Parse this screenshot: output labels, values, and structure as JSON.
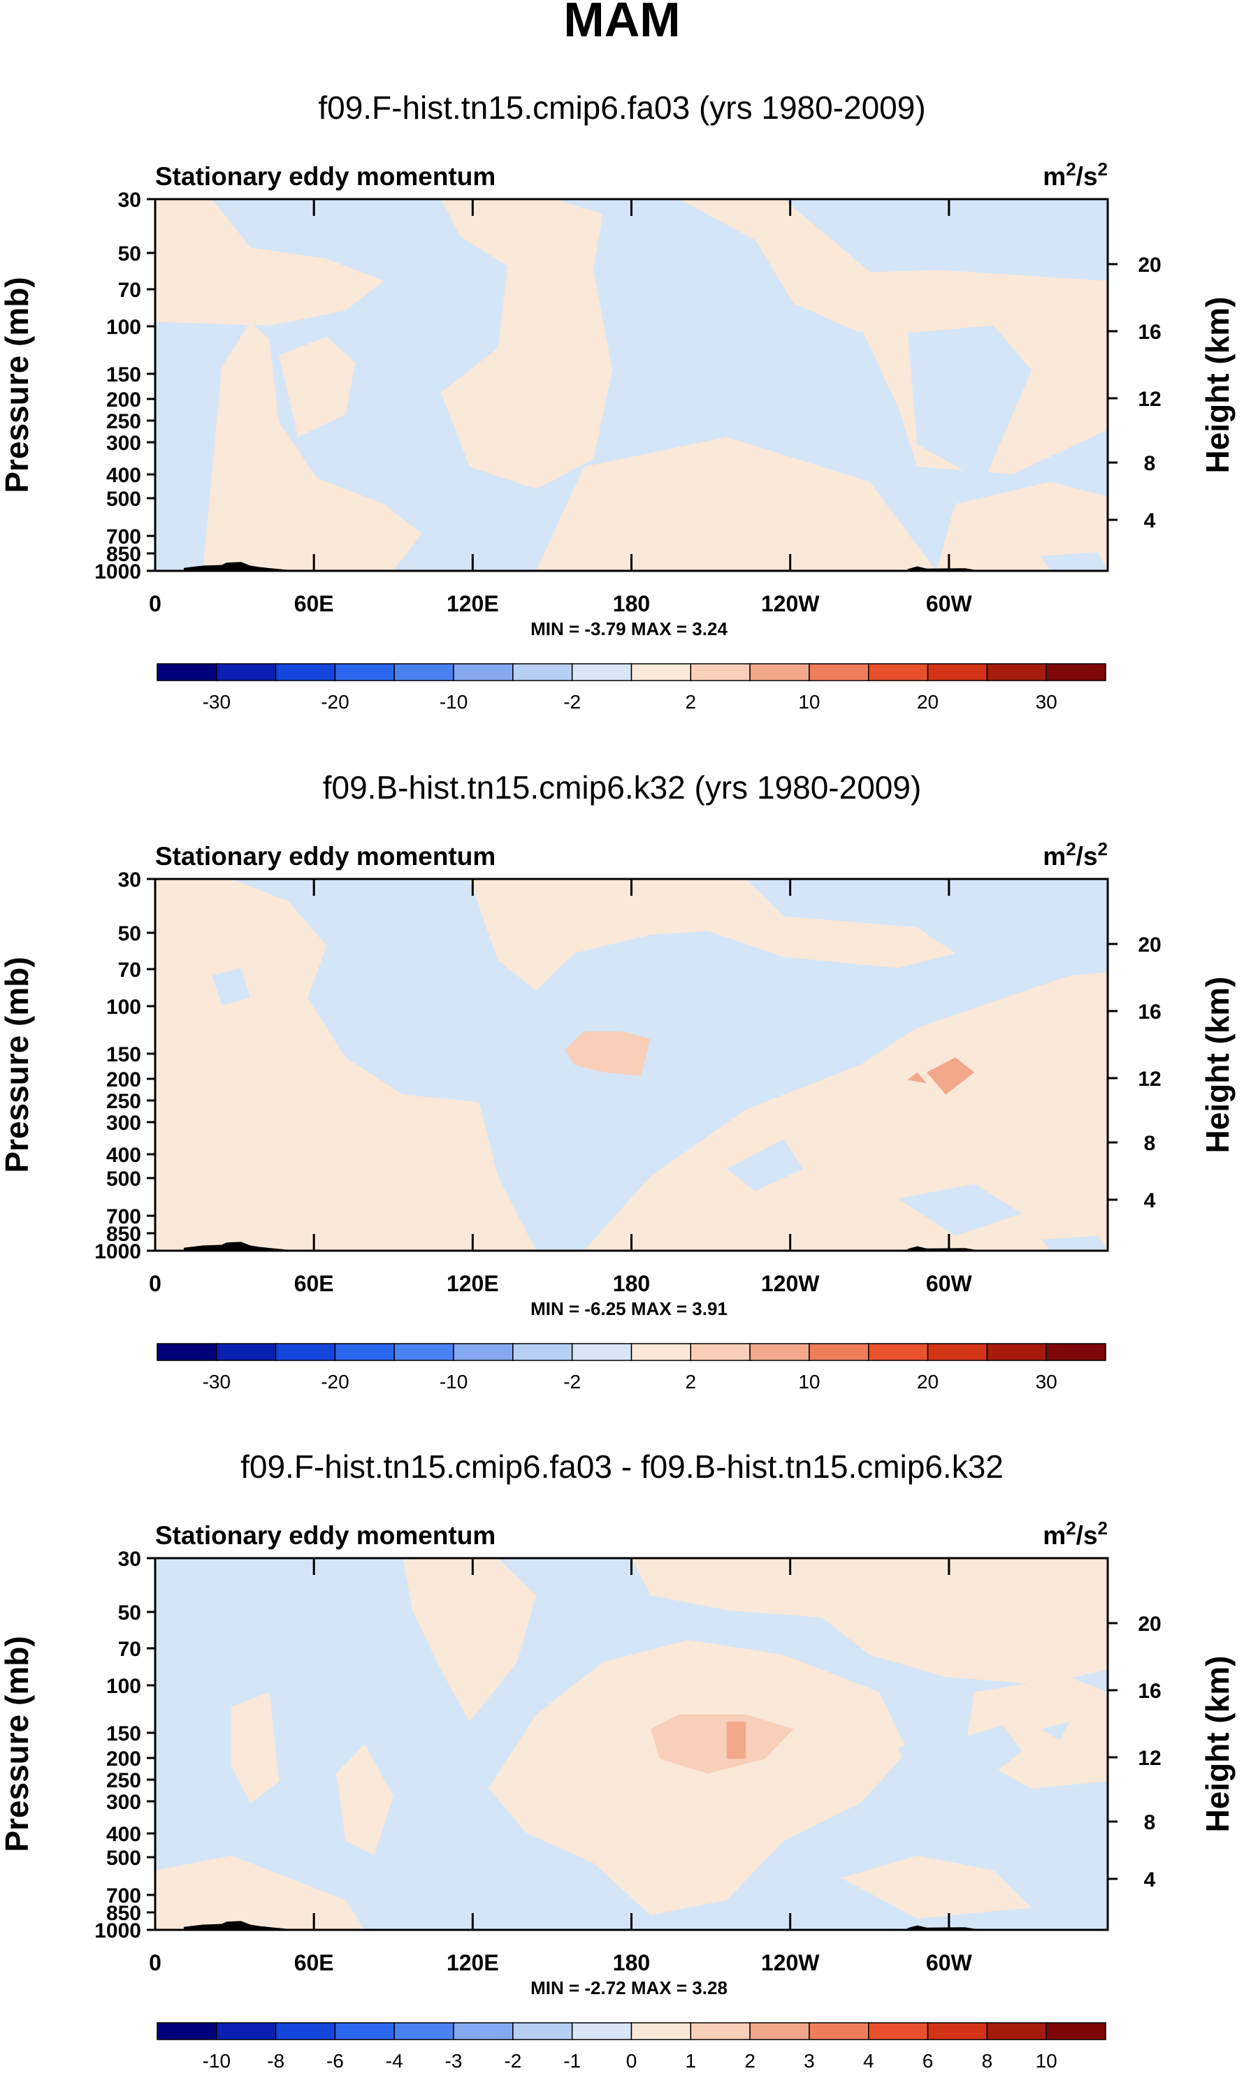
{
  "figure_title": "MAM",
  "chart_data": [
    {
      "type": "heatmap",
      "title": "f09.F-hist.tn15.cmip6.fa03 (yrs 1980-2009)",
      "subtitle": "Stationary eddy momentum",
      "units_base": "m",
      "units_sup1": "2",
      "units_mid": "/s",
      "units_sup2": "2",
      "ylabel": "Pressure (mb)",
      "y2label": "Height (km)",
      "x_ticks": [
        "0",
        "60E",
        "120E",
        "180",
        "120W",
        "60W"
      ],
      "y_ticks": [
        "30",
        "50",
        "70",
        "100",
        "150",
        "200",
        "250",
        "300",
        "400",
        "500",
        "700",
        "850",
        "1000"
      ],
      "y2_ticks": [
        "20",
        "16",
        "12",
        "8",
        "4"
      ],
      "min_label": "MIN =",
      "min_value": "-3.79",
      "max_label": "MAX =",
      "max_value": "3.24",
      "colorbar_colors": [
        "#00007a",
        "#0a1fb3",
        "#1446dd",
        "#2b66ef",
        "#4a82f1",
        "#85a9f1",
        "#b8cff4",
        "#d8e6f8",
        "#fbe8d8",
        "#f8cfb9",
        "#f3a88b",
        "#ef7e5c",
        "#e8512c",
        "#d33417",
        "#a51c0c",
        "#7d0807"
      ],
      "colorbar_labels": [
        "-30",
        "-20",
        "-10",
        "-2",
        "2",
        "10",
        "20",
        "30"
      ],
      "colorbar_label_positions": [
        1,
        3,
        5,
        7,
        9,
        11,
        13,
        15
      ]
    },
    {
      "type": "heatmap",
      "title": "f09.B-hist.tn15.cmip6.k32 (yrs 1980-2009)",
      "subtitle": "Stationary eddy momentum",
      "units_base": "m",
      "units_sup1": "2",
      "units_mid": "/s",
      "units_sup2": "2",
      "ylabel": "Pressure (mb)",
      "y2label": "Height (km)",
      "x_ticks": [
        "0",
        "60E",
        "120E",
        "180",
        "120W",
        "60W"
      ],
      "y_ticks": [
        "30",
        "50",
        "70",
        "100",
        "150",
        "200",
        "250",
        "300",
        "400",
        "500",
        "700",
        "850",
        "1000"
      ],
      "y2_ticks": [
        "20",
        "16",
        "12",
        "8",
        "4"
      ],
      "min_label": "MIN =",
      "min_value": "-6.25",
      "max_label": "MAX =",
      "max_value": "3.91",
      "colorbar_colors": [
        "#00007a",
        "#0a1fb3",
        "#1446dd",
        "#2b66ef",
        "#4a82f1",
        "#85a9f1",
        "#b8cff4",
        "#d8e6f8",
        "#fbe8d8",
        "#f8cfb9",
        "#f3a88b",
        "#ef7e5c",
        "#e8512c",
        "#d33417",
        "#a51c0c",
        "#7d0807"
      ],
      "colorbar_labels": [
        "-30",
        "-20",
        "-10",
        "-2",
        "2",
        "10",
        "20",
        "30"
      ],
      "colorbar_label_positions": [
        1,
        3,
        5,
        7,
        9,
        11,
        13,
        15
      ]
    },
    {
      "type": "heatmap",
      "title": "f09.F-hist.tn15.cmip6.fa03 - f09.B-hist.tn15.cmip6.k32",
      "subtitle": "Stationary eddy momentum",
      "units_base": "m",
      "units_sup1": "2",
      "units_mid": "/s",
      "units_sup2": "2",
      "ylabel": "Pressure (mb)",
      "y2label": "Height (km)",
      "x_ticks": [
        "0",
        "60E",
        "120E",
        "180",
        "120W",
        "60W"
      ],
      "y_ticks": [
        "30",
        "50",
        "70",
        "100",
        "150",
        "200",
        "250",
        "300",
        "400",
        "500",
        "700",
        "850",
        "1000"
      ],
      "y2_ticks": [
        "20",
        "16",
        "12",
        "8",
        "4"
      ],
      "min_label": "MIN =",
      "min_value": "-2.72",
      "max_label": "MAX =",
      "max_value": "3.28",
      "colorbar_colors": [
        "#00007a",
        "#0a1fb3",
        "#1446dd",
        "#2b66ef",
        "#4a82f1",
        "#85a9f1",
        "#b8cff4",
        "#d8e6f8",
        "#fbe8d8",
        "#f8cfb9",
        "#f3a88b",
        "#ef7e5c",
        "#e8512c",
        "#d33417",
        "#a51c0c",
        "#7d0807"
      ],
      "colorbar_labels": [
        "-10",
        "-8",
        "-6",
        "-4",
        "-3",
        "-2",
        "-1",
        "0",
        "1",
        "2",
        "3",
        "4",
        "6",
        "8",
        "10"
      ],
      "colorbar_label_positions": [
        1,
        2,
        3,
        4,
        5,
        6,
        7,
        8,
        9,
        10,
        11,
        12,
        13,
        14,
        15
      ]
    }
  ]
}
